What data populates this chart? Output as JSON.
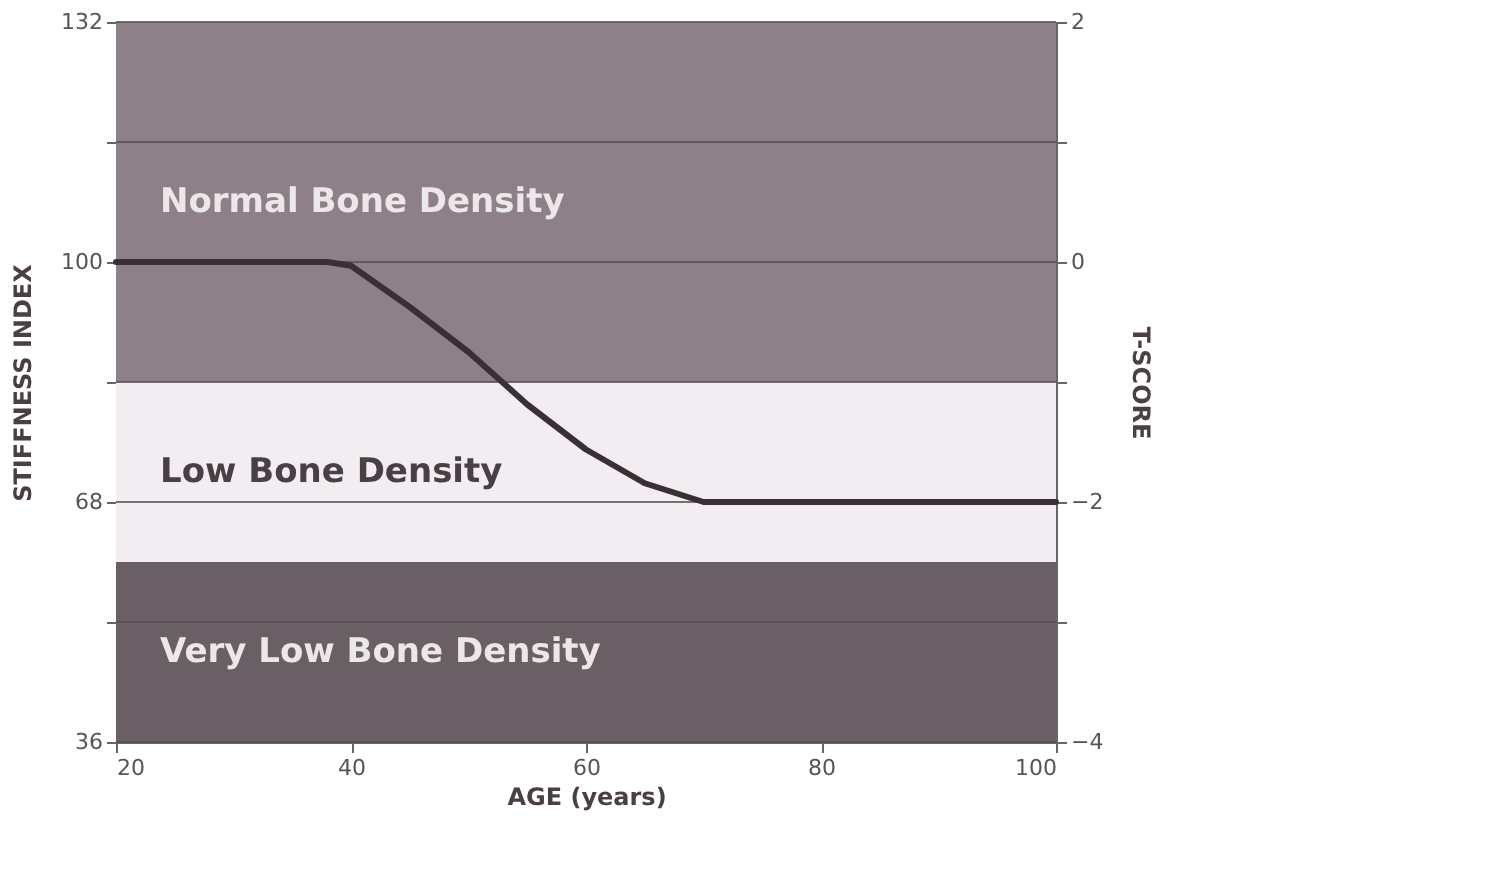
{
  "chart_data": {
    "type": "line",
    "xlabel": "AGE (years)",
    "ylabel": "STIFFNESS INDEX",
    "y2label": "T-SCORE",
    "x": [
      20,
      30,
      38,
      40,
      45,
      50,
      55,
      60,
      65,
      70,
      80,
      100
    ],
    "series": [
      {
        "color": "#3a2f35",
        "values": [
          100,
          100,
          100,
          99.5,
          94,
          88,
          81,
          75,
          70.5,
          68,
          68,
          68
        ]
      }
    ],
    "xlim": [
      20,
      100
    ],
    "xticks": [
      20,
      40,
      60,
      80,
      100
    ],
    "ylim": [
      36,
      132
    ],
    "yticks": [
      36,
      {
        "value": 52,
        "label": null
      },
      68,
      {
        "value": 84,
        "label": null
      },
      100,
      {
        "value": 116,
        "label": null
      },
      132
    ],
    "y2lim": [
      -4,
      2
    ],
    "y2ticks": [
      -4,
      {
        "value": -3,
        "label": null
      },
      -2,
      {
        "value": -1,
        "label": null
      },
      0,
      {
        "value": 1,
        "label": null
      },
      2
    ],
    "bands": [
      {
        "axis": "y",
        "from": 84,
        "to": 132,
        "label": "Normal Bone Density",
        "color": "#8e8088"
      },
      {
        "axis": "y",
        "from": 60,
        "to": 84,
        "label": "Low Bone Density",
        "color": "#f1edf0"
      },
      {
        "axis": "y",
        "from": 36,
        "to": 60,
        "label": "Very Low Bone Density",
        "color": "#6b5f66"
      }
    ],
    "grid": "y",
    "marker": "none",
    "line_style": "solid"
  }
}
